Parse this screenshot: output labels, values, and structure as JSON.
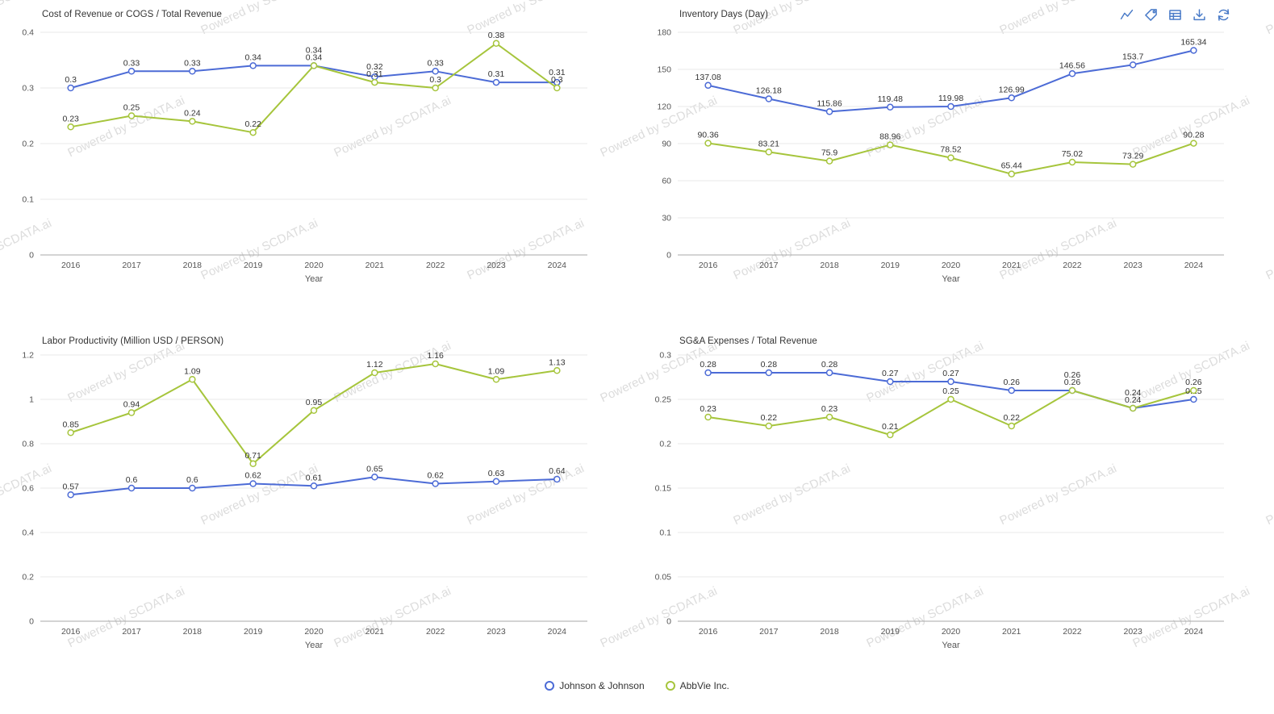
{
  "page": {
    "watermark_text": "Powered by SCDATA.ai"
  },
  "legend": {
    "position": "bottom",
    "items": [
      {
        "label": "Johnson & Johnson",
        "color": "#4C6BD6"
      },
      {
        "label": "AbbVie Inc.",
        "color": "#A6C53C"
      }
    ]
  },
  "toolbar": {
    "icon_color": "#4A7BC8",
    "icons": [
      "line-chart",
      "tag",
      "data-view",
      "download",
      "refresh"
    ]
  },
  "chart_data": [
    {
      "type": "line",
      "title": "Cost of Revenue or COGS / Total Revenue",
      "xlabel": "Year",
      "ylabel": "",
      "grid": true,
      "categories": [
        "2016",
        "2017",
        "2018",
        "2019",
        "2020",
        "2021",
        "2022",
        "2023",
        "2024"
      ],
      "ylim": [
        0,
        0.4
      ],
      "yticks": [
        0,
        0.1,
        0.2,
        0.3,
        0.4
      ],
      "series": [
        {
          "name": "Johnson & Johnson",
          "values": [
            0.3,
            0.33,
            0.33,
            0.34,
            0.34,
            0.32,
            0.33,
            0.31,
            0.31
          ]
        },
        {
          "name": "AbbVie Inc.",
          "values": [
            0.23,
            0.25,
            0.24,
            0.22,
            0.34,
            0.31,
            0.3,
            0.38,
            0.3
          ]
        }
      ]
    },
    {
      "type": "line",
      "title": "Inventory Days (Day)",
      "xlabel": "Year",
      "ylabel": "",
      "grid": true,
      "categories": [
        "2016",
        "2017",
        "2018",
        "2019",
        "2020",
        "2021",
        "2022",
        "2023",
        "2024"
      ],
      "ylim": [
        0,
        180
      ],
      "yticks": [
        0,
        30,
        60,
        90,
        120,
        150,
        180
      ],
      "series": [
        {
          "name": "Johnson & Johnson",
          "values": [
            137.08,
            126.18,
            115.86,
            119.48,
            119.98,
            126.99,
            146.56,
            153.7,
            165.34
          ]
        },
        {
          "name": "AbbVie Inc.",
          "values": [
            90.36,
            83.21,
            75.9,
            88.96,
            78.52,
            65.44,
            75.02,
            73.29,
            90.28
          ]
        }
      ]
    },
    {
      "type": "line",
      "title": "Labor Productivity (Million USD / PERSON)",
      "xlabel": "Year",
      "ylabel": "",
      "grid": true,
      "categories": [
        "2016",
        "2017",
        "2018",
        "2019",
        "2020",
        "2021",
        "2022",
        "2023",
        "2024"
      ],
      "ylim": [
        0,
        1.2
      ],
      "yticks": [
        0,
        0.2,
        0.4,
        0.6,
        0.8,
        1,
        1.2
      ],
      "series": [
        {
          "name": "Johnson & Johnson",
          "values": [
            0.57,
            0.6,
            0.6,
            0.62,
            0.61,
            0.65,
            0.62,
            0.63,
            0.64
          ]
        },
        {
          "name": "AbbVie Inc.",
          "values": [
            0.85,
            0.94,
            1.09,
            0.71,
            0.95,
            1.12,
            1.16,
            1.09,
            1.13
          ]
        }
      ]
    },
    {
      "type": "line",
      "title": "SG&A Expenses / Total Revenue",
      "xlabel": "Year",
      "ylabel": "",
      "grid": true,
      "categories": [
        "2016",
        "2017",
        "2018",
        "2019",
        "2020",
        "2021",
        "2022",
        "2023",
        "2024"
      ],
      "ylim": [
        0,
        0.3
      ],
      "yticks": [
        0,
        0.05,
        0.1,
        0.15,
        0.2,
        0.25,
        0.3
      ],
      "series": [
        {
          "name": "Johnson & Johnson",
          "values": [
            0.28,
            0.28,
            0.28,
            0.27,
            0.27,
            0.26,
            0.26,
            0.24,
            0.25
          ]
        },
        {
          "name": "AbbVie Inc.",
          "values": [
            0.23,
            0.22,
            0.23,
            0.21,
            0.25,
            0.22,
            0.26,
            0.24,
            0.26
          ]
        }
      ]
    }
  ]
}
